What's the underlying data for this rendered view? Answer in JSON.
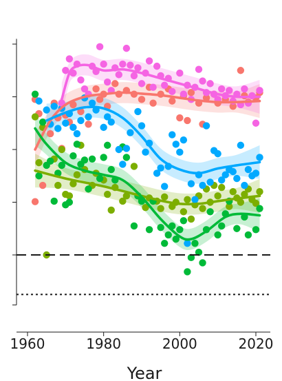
{
  "chart_data": {
    "type": "scatter",
    "title": "",
    "xlabel": "Year",
    "ylabel": "",
    "xlim": [
      1958,
      2024
    ],
    "ylim": [
      -0.95,
      4.1
    ],
    "x_ticks": [
      1960,
      1980,
      2000,
      2020
    ],
    "y_tick_positions": [
      -0.95,
      0,
      1,
      2,
      3,
      4
    ],
    "grid": false,
    "legend": "none",
    "reference_lines": [
      {
        "y": 0,
        "style": "dashed"
      },
      {
        "y": -0.75,
        "style": "dotted"
      }
    ],
    "series": [
      {
        "color": "#F8766D",
        "points": [
          [
            1962,
            1.01
          ],
          [
            1962,
            2.95
          ],
          [
            1963,
            2.68
          ],
          [
            1964,
            1.32
          ],
          [
            1966,
            2.3
          ],
          [
            1967,
            2.88
          ],
          [
            1968,
            2.6
          ],
          [
            1969,
            2.02
          ],
          [
            1970,
            2.65
          ],
          [
            1971,
            2.52
          ],
          [
            1972,
            2.85
          ],
          [
            1974,
            2.72
          ],
          [
            1975,
            2.98
          ],
          [
            1976,
            2.48
          ],
          [
            1978,
            3.15
          ],
          [
            1979,
            2.95
          ],
          [
            1980,
            3.05
          ],
          [
            1981,
            2.82
          ],
          [
            1983,
            3.25
          ],
          [
            1984,
            3.05
          ],
          [
            1986,
            3.12
          ],
          [
            1988,
            3.05
          ],
          [
            1990,
            2.95
          ],
          [
            1992,
            3.18
          ],
          [
            1993,
            2.88
          ],
          [
            1995,
            3.05
          ],
          [
            1997,
            3.15
          ],
          [
            1998,
            2.92
          ],
          [
            2000,
            2.6
          ],
          [
            2001,
            3.02
          ],
          [
            2002,
            2.55
          ],
          [
            2003,
            3.08
          ],
          [
            2005,
            2.88
          ],
          [
            2006,
            2.48
          ],
          [
            2007,
            2.98
          ],
          [
            2009,
            3.05
          ],
          [
            2010,
            2.88
          ],
          [
            2012,
            2.95
          ],
          [
            2014,
            2.82
          ],
          [
            2016,
            3.5
          ],
          [
            2017,
            3.02
          ],
          [
            2018,
            2.9
          ],
          [
            2020,
            2.98
          ],
          [
            2021,
            3.08
          ]
        ],
        "trend": [
          [
            1962,
            2.0
          ],
          [
            1966,
            2.55
          ],
          [
            1970,
            2.85
          ],
          [
            1975,
            3.0
          ],
          [
            1980,
            3.05
          ],
          [
            1985,
            3.08
          ],
          [
            1990,
            3.06
          ],
          [
            1995,
            3.03
          ],
          [
            2000,
            2.98
          ],
          [
            2005,
            2.93
          ],
          [
            2010,
            2.9
          ],
          [
            2015,
            2.9
          ],
          [
            2021,
            2.92
          ]
        ]
      },
      {
        "color": "#7CAE00",
        "points": [
          [
            1962,
            2.62
          ],
          [
            1963,
            1.75
          ],
          [
            1964,
            2.42
          ],
          [
            1965,
            0
          ],
          [
            1967,
            1.82
          ],
          [
            1968,
            1.32
          ],
          [
            1969,
            2.0
          ],
          [
            1970,
            1.15
          ],
          [
            1971,
            1.12
          ],
          [
            1972,
            1.35
          ],
          [
            1973,
            1.52
          ],
          [
            1974,
            2.08
          ],
          [
            1975,
            1.62
          ],
          [
            1977,
            1.32
          ],
          [
            1978,
            1.55
          ],
          [
            1980,
            1.42
          ],
          [
            1981,
            1.15
          ],
          [
            1982,
            0.85
          ],
          [
            1983,
            1.28
          ],
          [
            1985,
            1.02
          ],
          [
            1986,
            1.12
          ],
          [
            1988,
            1.68
          ],
          [
            1990,
            1.05
          ],
          [
            1991,
            0.9
          ],
          [
            1992,
            1.08
          ],
          [
            1994,
            1.02
          ],
          [
            1995,
            0.88
          ],
          [
            1996,
            1.1
          ],
          [
            1998,
            0.92
          ],
          [
            1999,
            1.0
          ],
          [
            2001,
            0.82
          ],
          [
            2002,
            1.05
          ],
          [
            2003,
            0.68
          ],
          [
            2004,
            0.95
          ],
          [
            2005,
            1.12
          ],
          [
            2006,
            0.88
          ],
          [
            2007,
            1.25
          ],
          [
            2008,
            1.0
          ],
          [
            2009,
            1.32
          ],
          [
            2010,
            1.12
          ],
          [
            2011,
            1.28
          ],
          [
            2013,
            0.92
          ],
          [
            2014,
            1.2
          ],
          [
            2015,
            1.08
          ],
          [
            2016,
            1.0
          ],
          [
            2017,
            1.15
          ],
          [
            2018,
            1.25
          ],
          [
            2019,
            1.05
          ],
          [
            2020,
            0.98
          ],
          [
            2021,
            1.2
          ]
        ],
        "trend": [
          [
            1962,
            1.6
          ],
          [
            1970,
            1.45
          ],
          [
            1980,
            1.3
          ],
          [
            1990,
            1.12
          ],
          [
            1995,
            1.03
          ],
          [
            2000,
            0.97
          ],
          [
            2005,
            0.97
          ],
          [
            2010,
            1.02
          ],
          [
            2015,
            1.07
          ],
          [
            2021,
            1.12
          ]
        ]
      },
      {
        "color": "#00BA38",
        "points": [
          [
            1962,
            3.05
          ],
          [
            1963,
            1.5
          ],
          [
            1964,
            2.52
          ],
          [
            1965,
            1.7
          ],
          [
            1966,
            1.78
          ],
          [
            1967,
            1.02
          ],
          [
            1968,
            1.55
          ],
          [
            1969,
            1.7
          ],
          [
            1970,
            0.95
          ],
          [
            1971,
            1.0
          ],
          [
            1972,
            1.88
          ],
          [
            1973,
            2.1
          ],
          [
            1974,
            1.72
          ],
          [
            1975,
            1.8
          ],
          [
            1976,
            1.25
          ],
          [
            1977,
            1.82
          ],
          [
            1979,
            1.45
          ],
          [
            1980,
            1.85
          ],
          [
            1981,
            2.08
          ],
          [
            1982,
            1.62
          ],
          [
            1983,
            1.42
          ],
          [
            1985,
            2.05
          ],
          [
            1986,
            1.85
          ],
          [
            1988,
            0.55
          ],
          [
            1989,
            1.12
          ],
          [
            1990,
            1.02
          ],
          [
            1992,
            0.48
          ],
          [
            1993,
            1.02
          ],
          [
            1995,
            0.52
          ],
          [
            1996,
            0.22
          ],
          [
            1997,
            0.38
          ],
          [
            1998,
            0.55
          ],
          [
            1999,
            0.3
          ],
          [
            2000,
            0.48
          ],
          [
            2001,
            0.65
          ],
          [
            2002,
            -0.32
          ],
          [
            2003,
            -0.05
          ],
          [
            2004,
            0.22
          ],
          [
            2005,
            0.05
          ],
          [
            2006,
            -0.15
          ],
          [
            2007,
            0.48
          ],
          [
            2008,
            0.82
          ],
          [
            2010,
            0.38
          ],
          [
            2011,
            0.55
          ],
          [
            2012,
            0.78
          ],
          [
            2013,
            1.02
          ],
          [
            2015,
            0.5
          ],
          [
            2017,
            0.72
          ],
          [
            2018,
            0.38
          ],
          [
            2020,
            0.48
          ],
          [
            2021,
            0.88
          ]
        ],
        "trend": [
          [
            1962,
            2.4
          ],
          [
            1965,
            2.1
          ],
          [
            1970,
            1.75
          ],
          [
            1975,
            1.6
          ],
          [
            1980,
            1.52
          ],
          [
            1985,
            1.42
          ],
          [
            1990,
            1.1
          ],
          [
            1995,
            0.68
          ],
          [
            2000,
            0.35
          ],
          [
            2003,
            0.3
          ],
          [
            2007,
            0.45
          ],
          [
            2012,
            0.72
          ],
          [
            2016,
            0.78
          ],
          [
            2021,
            0.75
          ]
        ]
      },
      {
        "color": "#00A9FF",
        "points": [
          [
            1963,
            2.92
          ],
          [
            1965,
            2.75
          ],
          [
            1966,
            2.48
          ],
          [
            1967,
            2.82
          ],
          [
            1968,
            2.4
          ],
          [
            1969,
            2.78
          ],
          [
            1970,
            2.5
          ],
          [
            1971,
            2.68
          ],
          [
            1972,
            2.42
          ],
          [
            1973,
            2.3
          ],
          [
            1974,
            2.55
          ],
          [
            1975,
            2.98
          ],
          [
            1976,
            2.62
          ],
          [
            1977,
            2.88
          ],
          [
            1978,
            2.75
          ],
          [
            1980,
            2.42
          ],
          [
            1981,
            2.62
          ],
          [
            1982,
            2.52
          ],
          [
            1984,
            2.0
          ],
          [
            1985,
            1.72
          ],
          [
            1986,
            2.02
          ],
          [
            1987,
            2.32
          ],
          [
            1989,
            2.72
          ],
          [
            1990,
            2.45
          ],
          [
            1991,
            1.95
          ],
          [
            1992,
            2.12
          ],
          [
            1994,
            1.55
          ],
          [
            1995,
            1.65
          ],
          [
            1996,
            1.3
          ],
          [
            1997,
            1.68
          ],
          [
            1998,
            2.28
          ],
          [
            1999,
            2.1
          ],
          [
            2000,
            1.95
          ],
          [
            2001,
            2.18
          ],
          [
            2002,
            0.22
          ],
          [
            2003,
            1.35
          ],
          [
            2004,
            1.05
          ],
          [
            2005,
            1.52
          ],
          [
            2006,
            1.32
          ],
          [
            2007,
            2.45
          ],
          [
            2008,
            1.38
          ],
          [
            2009,
            1.98
          ],
          [
            2010,
            1.92
          ],
          [
            2011,
            1.42
          ],
          [
            2012,
            1.52
          ],
          [
            2013,
            1.62
          ],
          [
            2014,
            1.58
          ],
          [
            2015,
            1.45
          ],
          [
            2016,
            2.08
          ],
          [
            2017,
            1.32
          ],
          [
            2018,
            1.62
          ],
          [
            2019,
            1.5
          ],
          [
            2020,
            1.55
          ],
          [
            2021,
            1.85
          ]
        ],
        "trend": [
          [
            1965,
            2.55
          ],
          [
            1970,
            2.7
          ],
          [
            1975,
            2.8
          ],
          [
            1980,
            2.78
          ],
          [
            1985,
            2.6
          ],
          [
            1990,
            2.25
          ],
          [
            1995,
            1.82
          ],
          [
            2000,
            1.62
          ],
          [
            2005,
            1.55
          ],
          [
            2010,
            1.64
          ],
          [
            2015,
            1.7
          ],
          [
            2021,
            1.76
          ]
        ]
      },
      {
        "color": "#F564E3",
        "points": [
          [
            1969,
            2.88
          ],
          [
            1970,
            3.5
          ],
          [
            1971,
            3.72
          ],
          [
            1972,
            3.45
          ],
          [
            1973,
            3.62
          ],
          [
            1974,
            3.32
          ],
          [
            1975,
            3.15
          ],
          [
            1976,
            3.05
          ],
          [
            1977,
            3.58
          ],
          [
            1978,
            3.48
          ],
          [
            1979,
            3.95
          ],
          [
            1980,
            3.62
          ],
          [
            1981,
            3.28
          ],
          [
            1982,
            3.12
          ],
          [
            1983,
            3.55
          ],
          [
            1984,
            3.42
          ],
          [
            1985,
            3.62
          ],
          [
            1986,
            3.92
          ],
          [
            1987,
            3.6
          ],
          [
            1988,
            3.4
          ],
          [
            1989,
            3.55
          ],
          [
            1990,
            3.25
          ],
          [
            1991,
            3.45
          ],
          [
            1992,
            3.68
          ],
          [
            1993,
            3.18
          ],
          [
            1994,
            3.58
          ],
          [
            1995,
            3.4
          ],
          [
            1996,
            3.22
          ],
          [
            1997,
            3.35
          ],
          [
            1998,
            3.1
          ],
          [
            2000,
            3.45
          ],
          [
            2001,
            3.05
          ],
          [
            2002,
            3.22
          ],
          [
            2003,
            2.95
          ],
          [
            2004,
            3.18
          ],
          [
            2005,
            3.52
          ],
          [
            2006,
            3.3
          ],
          [
            2007,
            3.08
          ],
          [
            2008,
            3.25
          ],
          [
            2009,
            3.05
          ],
          [
            2010,
            2.95
          ],
          [
            2011,
            3.15
          ],
          [
            2012,
            3.02
          ],
          [
            2013,
            3.12
          ],
          [
            2014,
            2.92
          ],
          [
            2015,
            3.05
          ],
          [
            2016,
            2.85
          ],
          [
            2017,
            3.15
          ],
          [
            2018,
            2.88
          ],
          [
            2019,
            3.02
          ],
          [
            2020,
            2.5
          ],
          [
            2021,
            3.12
          ]
        ],
        "trend": [
          [
            1969,
            2.95
          ],
          [
            1971,
            3.45
          ],
          [
            1973,
            3.58
          ],
          [
            1976,
            3.6
          ],
          [
            1980,
            3.5
          ],
          [
            1985,
            3.52
          ],
          [
            1990,
            3.45
          ],
          [
            1995,
            3.35
          ],
          [
            2000,
            3.25
          ],
          [
            2005,
            3.15
          ],
          [
            2010,
            3.05
          ],
          [
            2015,
            3.0
          ],
          [
            2021,
            3.0
          ]
        ]
      }
    ]
  }
}
